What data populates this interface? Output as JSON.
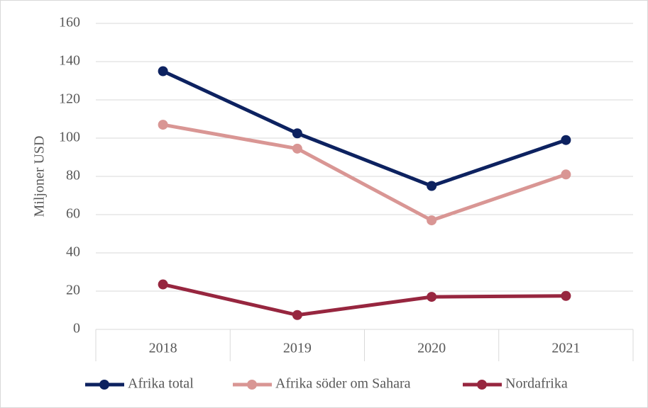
{
  "chart_data": {
    "type": "line",
    "y_label": "Miljoner USD",
    "categories": [
      "2018",
      "2019",
      "2020",
      "2021"
    ],
    "series": [
      {
        "name": "Afrika total",
        "color": "#0d2260",
        "values": [
          135,
          102.5,
          75,
          99
        ]
      },
      {
        "name": "Afrika söder om Sahara",
        "color": "#d99694",
        "values": [
          107,
          94.5,
          57,
          81
        ]
      },
      {
        "name": "Nordafrika",
        "color": "#97263f",
        "values": [
          23.5,
          7.5,
          17,
          17.5
        ]
      }
    ],
    "ylim": [
      0,
      160
    ],
    "yticks": [
      0,
      20,
      40,
      60,
      80,
      100,
      120,
      140,
      160
    ],
    "grid": true,
    "legend": "bottom"
  }
}
